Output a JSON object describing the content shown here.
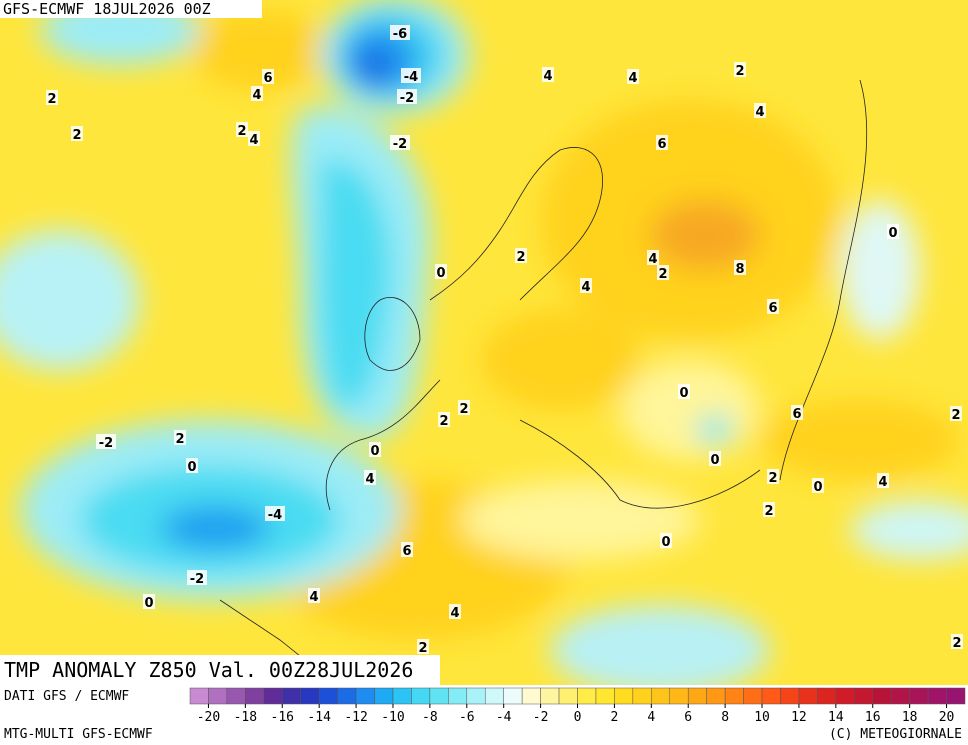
{
  "header": {
    "title": "GFS-ECMWF 18JUL2026 00Z"
  },
  "map": {
    "title": "TMP ANOMALY Z850 Val. 00Z28JUL2026",
    "contour_labels": [
      -6,
      6,
      4,
      -4,
      -2,
      2,
      2,
      2,
      4,
      -2,
      4,
      4,
      2,
      4,
      6,
      0,
      0,
      2,
      4,
      2,
      4,
      8,
      6,
      0,
      2,
      2,
      6,
      2,
      -2,
      2,
      0,
      0,
      4,
      0,
      2,
      0,
      4,
      2,
      -4,
      6,
      0,
      -2,
      0,
      4,
      4,
      2,
      2
    ]
  },
  "footer": {
    "source": "DATI GFS / ECMWF",
    "model": "MTG-MULTI GFS-ECMWF",
    "copyright": "(C) METEOGIORNALE"
  },
  "colorbar": {
    "ticks": [
      -20,
      -18,
      -16,
      -14,
      -12,
      -10,
      -8,
      -6,
      -4,
      -2,
      0,
      2,
      4,
      6,
      8,
      10,
      12,
      14,
      16,
      18,
      20
    ],
    "colors": [
      "#c88ad0",
      "#b070c0",
      "#9858b0",
      "#8040a0",
      "#602c98",
      "#4030a8",
      "#2838c0",
      "#1c50d8",
      "#1c6ce6",
      "#1e8cf0",
      "#1eaaf2",
      "#2cc4f4",
      "#44d8f4",
      "#60e4f4",
      "#84ecf6",
      "#a8f2f8",
      "#cef8fa",
      "#ecfcfc",
      "#fffad0",
      "#fff4a0",
      "#fff070",
      "#ffec48",
      "#ffe630",
      "#ffdc20",
      "#ffd01c",
      "#ffc41a",
      "#ffb818",
      "#ffa816",
      "#ff9814",
      "#ff8414",
      "#ff6e14",
      "#ff5a18",
      "#f44418",
      "#e8321c",
      "#dc2420",
      "#d01c28",
      "#c41830",
      "#b81438",
      "#b01448",
      "#a81458",
      "#a01468",
      "#981470"
    ]
  }
}
